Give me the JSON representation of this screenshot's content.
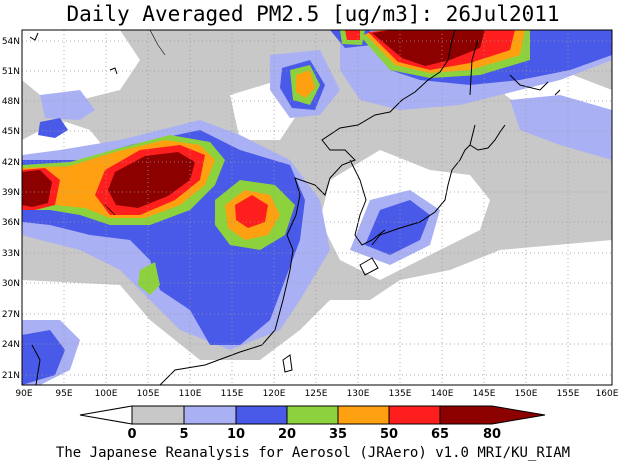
{
  "title": "Daily Averaged PM2.5 [ug/m3]: 26Jul2011",
  "credit": "The Japanese Reanalysis for Aerosol (JRAero) v1.0 MRI/KU_RIAM",
  "axes": {
    "x_ticks": [
      "90E",
      "95E",
      "100E",
      "105E",
      "110E",
      "115E",
      "120E",
      "125E",
      "130E",
      "135E",
      "140E",
      "145E",
      "150E",
      "155E",
      "160E"
    ],
    "y_ticks": [
      "54N",
      "51N",
      "48N",
      "45N",
      "42N",
      "39N",
      "36N",
      "33N",
      "30N",
      "27N",
      "24N",
      "21N"
    ],
    "lon_range": [
      90,
      160
    ],
    "lat_range": [
      20,
      55
    ],
    "grid": "dotted"
  },
  "colorbar": {
    "labels": [
      "0",
      "5",
      "10",
      "20",
      "35",
      "50",
      "65",
      "80"
    ],
    "colors": [
      "#ffffff",
      "#c8c8c8",
      "#aab0f4",
      "#4a5ae8",
      "#8cd23c",
      "#ffa010",
      "#ff1e1e",
      "#8c0000"
    ]
  }
}
